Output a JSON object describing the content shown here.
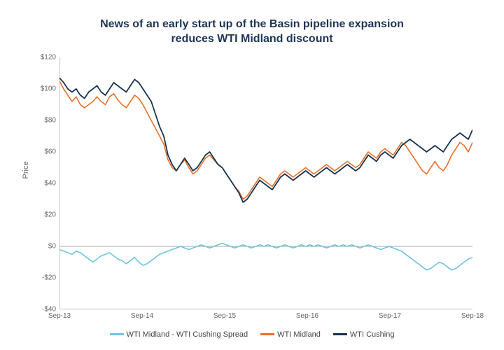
{
  "chart": {
    "type": "line",
    "title_line1": "News of an early start up of the Basin pipeline expansion",
    "title_line2": "reduces WTI Midland discount",
    "title_color": "#1d3557",
    "title_fontsize": 16,
    "background_color": "#ffffff",
    "ylabel": "Price",
    "ylabel_color": "#666666",
    "ylim": [
      -40,
      120
    ],
    "ytick_step": 20,
    "ytick_prefix": "$",
    "ytick_labels": [
      "-$40",
      "-$20",
      "$0",
      "$20",
      "$40",
      "$60",
      "$80",
      "$100",
      "$120"
    ],
    "ytick_values": [
      -40,
      -20,
      0,
      20,
      40,
      60,
      80,
      100,
      120
    ],
    "x_labels": [
      "Sep-13",
      "Sep-14",
      "Sep-15",
      "Sep-16",
      "Sep-17",
      "Sep-18"
    ],
    "x_positions": [
      0,
      0.2,
      0.4,
      0.6,
      0.8,
      1.0
    ],
    "axis_color": "#888888",
    "axis_line_width": 1,
    "tick_font_size": 10,
    "tick_color": "#666666",
    "series": [
      {
        "name": "WTI Midland - WTI Cushing Spread",
        "color": "#6fc3df",
        "line_width": 1.6,
        "data": [
          -2,
          -3,
          -4,
          -5,
          -3,
          -4,
          -6,
          -8,
          -10,
          -8,
          -6,
          -5,
          -4,
          -6,
          -8,
          -9,
          -11,
          -9,
          -7,
          -10,
          -12,
          -11,
          -9,
          -7,
          -5,
          -4,
          -3,
          -2,
          -1,
          0,
          -1,
          -2,
          -1,
          0,
          1,
          0,
          -1,
          0,
          1,
          2,
          1,
          0,
          -1,
          0,
          1,
          0,
          -1,
          0,
          1,
          0,
          1,
          0,
          -1,
          0,
          1,
          0,
          -1,
          0,
          1,
          0,
          1,
          0,
          1,
          0,
          -1,
          0,
          1,
          0,
          1,
          0,
          1,
          0,
          -1,
          0,
          1,
          0,
          -1,
          -2,
          -1,
          0,
          -1,
          -2,
          -3,
          -5,
          -7,
          -9,
          -11,
          -13,
          -15,
          -14,
          -12,
          -10,
          -11,
          -13,
          -15,
          -14,
          -12,
          -10,
          -8,
          -7
        ]
      },
      {
        "name": "WTI Midland",
        "color": "#e8702a",
        "line_width": 1.6,
        "data": [
          105,
          100,
          96,
          92,
          95,
          90,
          88,
          90,
          92,
          95,
          92,
          90,
          95,
          97,
          93,
          90,
          88,
          92,
          96,
          94,
          90,
          85,
          80,
          75,
          70,
          65,
          55,
          50,
          48,
          52,
          55,
          50,
          46,
          48,
          52,
          56,
          58,
          55,
          52,
          50,
          46,
          42,
          38,
          35,
          30,
          32,
          36,
          40,
          44,
          42,
          40,
          38,
          42,
          46,
          48,
          46,
          44,
          46,
          48,
          50,
          48,
          46,
          48,
          50,
          52,
          50,
          48,
          50,
          52,
          54,
          52,
          50,
          52,
          56,
          60,
          58,
          56,
          60,
          62,
          60,
          58,
          62,
          66,
          64,
          60,
          56,
          52,
          48,
          46,
          50,
          54,
          50,
          48,
          52,
          58,
          62,
          66,
          64,
          60,
          66
        ]
      },
      {
        "name": "WTI Cushing",
        "color": "#16314f",
        "line_width": 1.8,
        "data": [
          107,
          104,
          100,
          98,
          100,
          96,
          94,
          98,
          100,
          102,
          98,
          96,
          100,
          104,
          102,
          100,
          98,
          102,
          106,
          104,
          100,
          96,
          92,
          84,
          76,
          70,
          58,
          52,
          48,
          52,
          56,
          52,
          48,
          50,
          54,
          58,
          60,
          56,
          52,
          50,
          46,
          42,
          38,
          34,
          28,
          30,
          34,
          38,
          42,
          40,
          38,
          36,
          40,
          44,
          46,
          44,
          42,
          44,
          46,
          48,
          46,
          44,
          46,
          48,
          50,
          48,
          46,
          48,
          50,
          52,
          50,
          48,
          50,
          54,
          58,
          56,
          54,
          58,
          60,
          58,
          56,
          60,
          64,
          66,
          68,
          66,
          64,
          62,
          60,
          62,
          64,
          62,
          60,
          64,
          68,
          70,
          72,
          70,
          68,
          74
        ]
      }
    ],
    "legend": {
      "position": "bottom",
      "fontsize": 11,
      "text_color": "#444444"
    }
  }
}
